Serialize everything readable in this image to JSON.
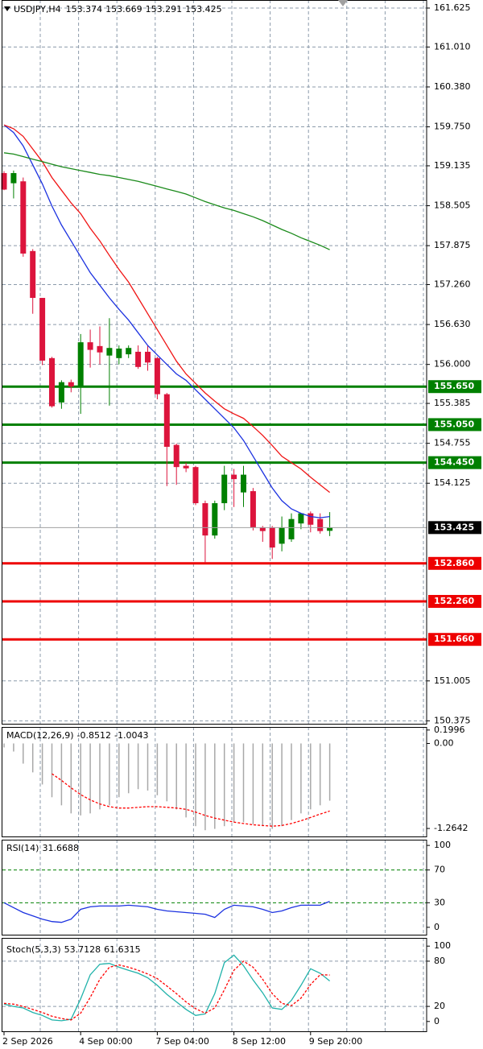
{
  "chart_data": [
    {
      "type": "candlestick",
      "title": "USDJPY,H4",
      "categories": [
        "2 Sep 2026",
        null,
        null,
        null,
        null,
        null,
        null,
        null,
        "4 Sep 00:00",
        null,
        null,
        null,
        null,
        null,
        null,
        null,
        "7 Sep 04:00",
        null,
        null,
        null,
        null,
        null,
        null,
        null,
        "8 Sep 12:00",
        null,
        null,
        null,
        null,
        null,
        null,
        null,
        "9 Sep 20:00",
        null,
        null
      ],
      "open": [
        159.02,
        158.86,
        158.89,
        157.79,
        157.05,
        156.1,
        155.4,
        155.72,
        155.65,
        156.35,
        156.29,
        156.14,
        156.1,
        156.16,
        156.2,
        156.2,
        156.1,
        155.53,
        154.73,
        154.4,
        154.38,
        153.81,
        153.3,
        153.81,
        154.26,
        153.98,
        154.0,
        153.43,
        153.43,
        153.17,
        153.24,
        153.49,
        153.65,
        153.56,
        153.374
      ],
      "high": [
        159.05,
        159.06,
        158.95,
        157.82,
        157.05,
        156.12,
        155.75,
        155.76,
        156.48,
        156.55,
        156.6,
        156.73,
        156.3,
        156.3,
        156.3,
        156.3,
        156.12,
        155.55,
        154.75,
        154.45,
        154.4,
        153.85,
        153.85,
        154.4,
        154.35,
        154.4,
        154.05,
        153.45,
        153.45,
        153.6,
        153.65,
        153.65,
        153.68,
        153.65,
        153.669
      ],
      "low": [
        158.75,
        158.62,
        157.7,
        156.8,
        155.99,
        155.32,
        155.3,
        155.56,
        155.22,
        155.95,
        156.0,
        155.35,
        156.0,
        156.1,
        155.93,
        155.9,
        155.45,
        154.08,
        154.1,
        154.3,
        153.78,
        152.87,
        153.25,
        153.7,
        153.75,
        153.75,
        153.38,
        153.2,
        152.93,
        153.05,
        153.2,
        153.4,
        153.35,
        153.33,
        153.291
      ],
      "close": [
        158.76,
        159.02,
        157.75,
        157.05,
        156.06,
        155.34,
        155.72,
        155.65,
        156.35,
        156.23,
        156.19,
        156.26,
        156.25,
        156.26,
        155.96,
        156.03,
        155.53,
        154.7,
        154.38,
        154.36,
        153.81,
        153.3,
        153.81,
        154.26,
        154.19,
        154.26,
        153.43,
        153.37,
        153.11,
        153.43,
        153.56,
        153.65,
        153.47,
        153.37,
        153.425
      ],
      "up_color": "#008000",
      "down_color": "#dc143c",
      "last_price_color": "#000000",
      "overlays": [
        {
          "color": "#1c32e0",
          "values": [
            159.78,
            159.66,
            159.45,
            159.15,
            158.85,
            158.5,
            158.2,
            157.95,
            157.7,
            157.45,
            157.25,
            157.05,
            156.87,
            156.7,
            156.5,
            156.3,
            156.15,
            156.0,
            155.85,
            155.75,
            155.6,
            155.45,
            155.3,
            155.15,
            155.0,
            154.8,
            154.55,
            154.3,
            154.05,
            153.85,
            153.72,
            153.65,
            153.6,
            153.58,
            153.6
          ]
        },
        {
          "color": "#f01414",
          "values": [
            159.78,
            159.72,
            159.6,
            159.4,
            159.2,
            158.95,
            158.75,
            158.55,
            158.38,
            158.15,
            157.95,
            157.72,
            157.5,
            157.3,
            157.05,
            156.8,
            156.55,
            156.3,
            156.05,
            155.85,
            155.7,
            155.55,
            155.42,
            155.3,
            155.22,
            155.15,
            155.02,
            154.88,
            154.72,
            154.55,
            154.45,
            154.35,
            154.22,
            154.1,
            153.98
          ]
        },
        {
          "color": "#1a8a1a",
          "values": [
            159.34,
            159.32,
            159.28,
            159.24,
            159.2,
            159.16,
            159.12,
            159.09,
            159.06,
            159.03,
            159.0,
            158.98,
            158.95,
            158.92,
            158.89,
            158.85,
            158.81,
            158.77,
            158.73,
            158.69,
            158.63,
            158.57,
            158.52,
            158.47,
            158.43,
            158.38,
            158.33,
            158.27,
            158.2,
            158.13,
            158.07,
            158.0,
            157.94,
            157.88,
            157.81
          ]
        }
      ],
      "levels": [
        {
          "value": 155.65,
          "label": "155.650",
          "color": "#008000"
        },
        {
          "value": 155.05,
          "label": "155.050",
          "color": "#008000"
        },
        {
          "value": 154.45,
          "label": "154.450",
          "color": "#008000"
        },
        {
          "value": 152.86,
          "label": "152.860",
          "color": "#ee0000"
        },
        {
          "value": 152.26,
          "label": "152.260",
          "color": "#ee0000"
        },
        {
          "value": 151.66,
          "label": "151.660",
          "color": "#ee0000"
        }
      ],
      "ylim": [
        150.316,
        161.752
      ],
      "yticks": [
        161.625,
        {
          "value": 161.01,
          "label": "161.010"
        },
        {
          "value": 160.38,
          "label": "160.380"
        },
        {
          "value": 159.75,
          "label": "159.750"
        },
        159.135,
        158.505,
        157.875,
        {
          "value": 157.26,
          "label": "157.260"
        },
        {
          "value": 156.63,
          "label": "156.630"
        },
        {
          "value": 156,
          "label": "156.000"
        },
        155.385,
        154.755,
        154.125,
        151.005,
        150.375
      ],
      "grid": true
    },
    {
      "type": "macd",
      "title": "MACD(12,26,9)",
      "values": [
        -0.06,
        -0.12,
        -0.3,
        -0.43,
        -0.61,
        -0.8,
        -0.92,
        -1.04,
        -1.07,
        -1.04,
        -0.98,
        -0.92,
        -0.8,
        -0.74,
        -0.68,
        -0.7,
        -0.77,
        -0.86,
        -0.98,
        -1.1,
        -1.23,
        -1.29,
        -1.27,
        -1.23,
        -1.17,
        -1.17,
        -1.2,
        -1.23,
        -1.27,
        -1.23,
        -1.14,
        -1.04,
        -0.98,
        -0.92,
        -0.8512
      ],
      "signal": [
        null,
        null,
        null,
        null,
        null,
        -0.45,
        -0.55,
        -0.66,
        -0.76,
        -0.84,
        -0.9,
        -0.94,
        -0.96,
        -0.96,
        -0.95,
        -0.94,
        -0.94,
        -0.95,
        -0.96,
        -0.98,
        -1.02,
        -1.07,
        -1.11,
        -1.14,
        -1.17,
        -1.19,
        -1.21,
        -1.22,
        -1.23,
        -1.22,
        -1.19,
        -1.15,
        -1.1,
        -1.05,
        -1.0043
      ],
      "color": "#a8a8a8",
      "signal_color": "#ff0000",
      "ylim": [
        -1.395,
        0.245
      ],
      "yticks": [
        0.1996,
        {
          "value": 0,
          "label": "0.00"
        },
        -1.2642
      ]
    },
    {
      "type": "line",
      "title": "RSI(14)",
      "values": [
        30,
        24,
        18,
        14,
        10,
        7,
        6,
        10,
        22,
        25,
        26,
        26,
        26,
        27,
        26,
        25,
        22,
        20,
        19,
        18,
        17,
        16,
        12,
        22,
        27,
        26,
        25,
        22,
        18,
        20,
        24,
        27,
        27,
        27,
        31.6688
      ],
      "color": "#1c32e0",
      "levels": [
        70,
        30
      ],
      "level_color": "#008000",
      "ylim": [
        -10,
        107
      ],
      "yticks": [
        100,
        70,
        30,
        0
      ]
    },
    {
      "type": "stochastic",
      "title": "Stoch(5,3,3)",
      "values": [
        23,
        20,
        18,
        12,
        8,
        2,
        1,
        3,
        30,
        62,
        76,
        77,
        72,
        68,
        64,
        58,
        48,
        36,
        26,
        16,
        8,
        10,
        37,
        78,
        88,
        74,
        55,
        38,
        18,
        16,
        28,
        48,
        70,
        64,
        53.7128
      ],
      "signal": [
        24,
        23,
        20,
        16,
        12,
        7,
        4,
        2,
        11,
        32,
        56,
        72,
        75,
        72,
        68,
        63,
        57,
        47,
        37,
        26,
        17,
        11,
        18,
        42,
        68,
        80,
        72,
        56,
        37,
        24,
        21,
        31,
        49,
        62,
        61.6315
      ],
      "color": "#20b2aa",
      "signal_color": "#ff0000",
      "levels": [
        80,
        20
      ],
      "level_color": "#8c9bab",
      "ylim": [
        -14.1,
        110.9
      ],
      "yticks": [
        100,
        80,
        20,
        0
      ]
    }
  ]
}
